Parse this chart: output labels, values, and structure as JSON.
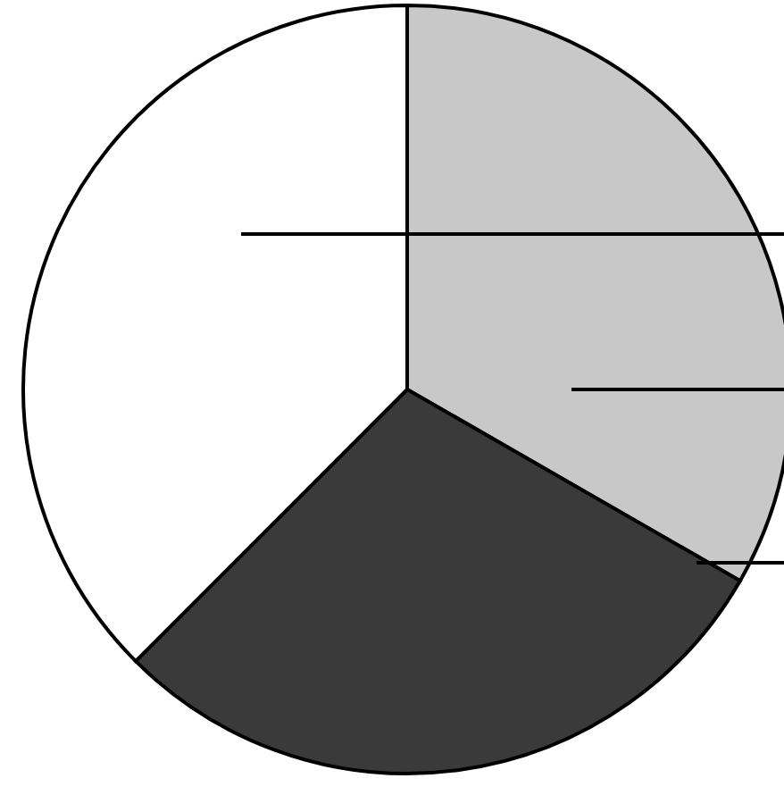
{
  "chart_data": {
    "type": "pie",
    "categories": [
      null,
      null,
      null
    ],
    "values": [
      33.3,
      29.2,
      37.5
    ],
    "colors": [
      "#c8c8c8",
      "#3a3a3a",
      "#ffffff"
    ]
  }
}
